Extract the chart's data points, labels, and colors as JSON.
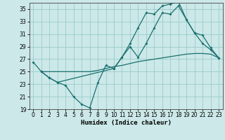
{
  "xlabel": "Humidex (Indice chaleur)",
  "bg_color": "#cce8e8",
  "grid_color": "#99cccc",
  "line_color": "#1a7070",
  "xlim": [
    -0.5,
    23.5
  ],
  "ylim": [
    19,
    36
  ],
  "yticks": [
    19,
    21,
    23,
    25,
    27,
    29,
    31,
    33,
    35
  ],
  "xticks": [
    0,
    1,
    2,
    3,
    4,
    5,
    6,
    7,
    8,
    9,
    10,
    11,
    12,
    13,
    14,
    15,
    16,
    17,
    18,
    19,
    20,
    21,
    22,
    23
  ],
  "line1_x": [
    0,
    1,
    2,
    3,
    4,
    5,
    6,
    7,
    8,
    9,
    10,
    11,
    12,
    13,
    14,
    15,
    16,
    17,
    18,
    19,
    20,
    21,
    22,
    23
  ],
  "line1_y": [
    26.5,
    25.0,
    24.0,
    23.3,
    22.8,
    21.0,
    19.8,
    19.2,
    23.2,
    26.0,
    25.5,
    27.3,
    29.0,
    27.3,
    29.5,
    32.0,
    34.4,
    34.2,
    35.5,
    33.3,
    31.2,
    29.5,
    28.5,
    27.2
  ],
  "line2_x": [
    1,
    2,
    3,
    4,
    5,
    6,
    7,
    8,
    9,
    10,
    11,
    12,
    13,
    14,
    15,
    16,
    17,
    18,
    19,
    20,
    21,
    22,
    23
  ],
  "line2_y": [
    25.0,
    25.0,
    25.0,
    25.0,
    25.0,
    25.0,
    25.0,
    25.2,
    25.5,
    25.8,
    26.0,
    26.3,
    26.6,
    26.8,
    27.0,
    27.2,
    27.4,
    27.6,
    27.8,
    27.9,
    27.9,
    27.8,
    27.2
  ],
  "line3_x": [
    1,
    2,
    3,
    10,
    11,
    12,
    13,
    14,
    15,
    16,
    17,
    18,
    19,
    20,
    21,
    22,
    23
  ],
  "line3_y": [
    25.0,
    24.0,
    23.3,
    25.5,
    27.3,
    29.5,
    32.0,
    34.4,
    34.2,
    35.5,
    35.8,
    36.2,
    33.3,
    31.2,
    30.8,
    28.8,
    27.2
  ]
}
